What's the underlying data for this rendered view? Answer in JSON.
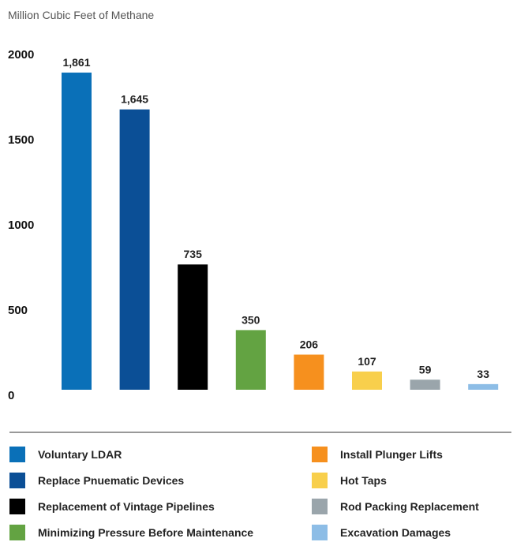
{
  "chart_data": {
    "type": "bar",
    "ylabel": "Million Cubic Feet of Methane",
    "ylim": [
      0,
      2000
    ],
    "yticks": [
      0,
      500,
      1000,
      1500,
      2000
    ],
    "categories": [
      "Voluntary LDAR",
      "Replace Pnuematic Devices",
      "Replacement of Vintage Pipelines",
      "Minimizing Pressure Before Maintenance",
      "Install Plunger Lifts",
      "Hot Taps",
      "Rod Packing Replacement",
      "Excavation Damages"
    ],
    "values": [
      1861,
      1645,
      735,
      350,
      206,
      107,
      59,
      33
    ],
    "value_labels": [
      "1,861",
      "1,645",
      "735",
      "350",
      "206",
      "107",
      "59",
      "33"
    ],
    "colors": [
      "#0a70b8",
      "#0b4f96",
      "#000000",
      "#63a342",
      "#f6901e",
      "#f8cf4c",
      "#9aa5ab",
      "#8dbde6"
    ],
    "legend_position": "bottom",
    "grid": false
  }
}
